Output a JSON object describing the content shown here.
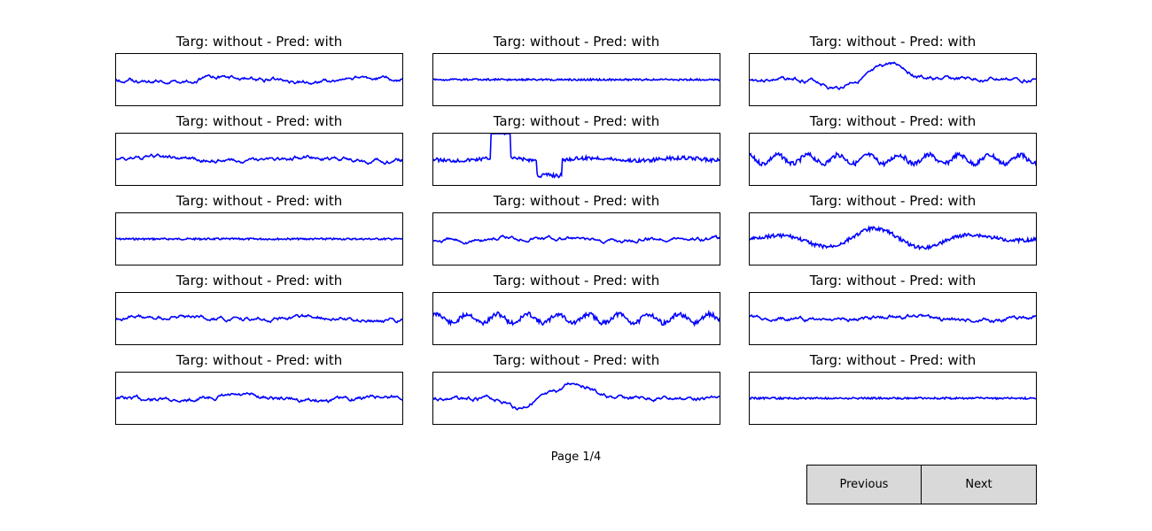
{
  "window": {
    "page_label": "Page 1/4",
    "previous_label": "Previous",
    "next_label": "Next",
    "line_color": "#0000ff"
  },
  "panels": [
    {
      "title": "Targ: without - Pred: with",
      "style": "moderate"
    },
    {
      "title": "Targ: without - Pred: with",
      "style": "flat"
    },
    {
      "title": "Targ: without - Pred: with",
      "style": "spiky"
    },
    {
      "title": "Targ: without - Pred: with",
      "style": "moderate"
    },
    {
      "title": "Targ: without - Pred: with",
      "style": "jump"
    },
    {
      "title": "Targ: without - Pred: with",
      "style": "oscillating"
    },
    {
      "title": "Targ: without - Pred: with",
      "style": "flat"
    },
    {
      "title": "Targ: without - Pred: with",
      "style": "moderate"
    },
    {
      "title": "Targ: without - Pred: with",
      "style": "waves"
    },
    {
      "title": "Targ: without - Pred: with",
      "style": "moderate"
    },
    {
      "title": "Targ: without - Pred: with",
      "style": "oscillating"
    },
    {
      "title": "Targ: without - Pred: with",
      "style": "moderate"
    },
    {
      "title": "Targ: without - Pred: with",
      "style": "moderate"
    },
    {
      "title": "Targ: without - Pred: with",
      "style": "spiky"
    },
    {
      "title": "Targ: without - Pred: with",
      "style": "flat"
    }
  ]
}
